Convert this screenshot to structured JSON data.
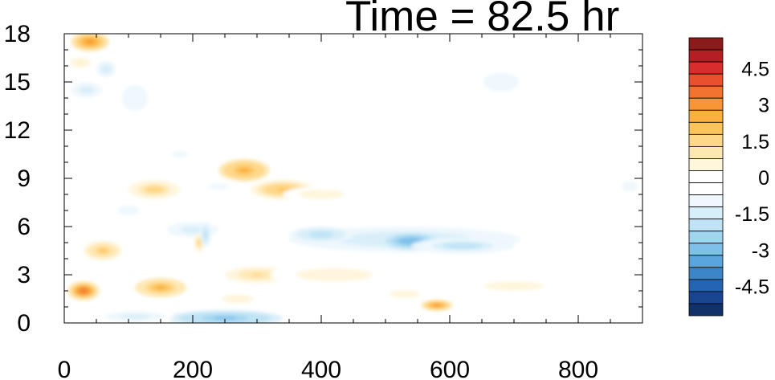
{
  "chart_data": {
    "type": "heatmap",
    "title": "Time = 82.5 hr",
    "xlabel": "",
    "ylabel": "",
    "xlim": [
      0,
      900
    ],
    "ylim": [
      0,
      18
    ],
    "x_ticks": [
      "0",
      "200",
      "400",
      "600",
      "800"
    ],
    "x_tick_values": [
      0,
      200,
      400,
      600,
      800
    ],
    "y_ticks": [
      "0",
      "3",
      "6",
      "9",
      "12",
      "15",
      "18"
    ],
    "y_tick_values": [
      0,
      3,
      6,
      9,
      12,
      15,
      18
    ],
    "colorbar": {
      "labels": [
        "4.5",
        "3",
        "1.5",
        "0",
        "-1.5",
        "-3",
        "-4.5"
      ],
      "label_values": [
        4.5,
        3,
        1.5,
        0,
        -1.5,
        -3,
        -4.5
      ],
      "levels": [
        -5.5,
        -5,
        -4.5,
        -4,
        -3.5,
        -3,
        -2.5,
        -2,
        -1.5,
        -1,
        -0.5,
        0,
        0.5,
        1,
        1.5,
        2,
        2.5,
        3,
        3.5,
        4,
        4.5,
        5,
        5.5
      ],
      "colors_top_to_bottom": [
        "#8b1a1a",
        "#b51f24",
        "#d72d2d",
        "#e8502e",
        "#f2732f",
        "#f89636",
        "#fbaf3e",
        "#fdc45c",
        "#fed788",
        "#fee8b2",
        "#fff6dc",
        "#ffffff",
        "#ffffff",
        "#eef8fd",
        "#d8eef9",
        "#bfe3f5",
        "#a0d5f0",
        "#7ec0e8",
        "#5aa5db",
        "#3c86c8",
        "#2464b0",
        "#1a4590",
        "#12306a"
      ]
    },
    "features": [
      {
        "x": 40,
        "y": 17.5,
        "rx": 30,
        "ry": 0.6,
        "value": 3.2
      },
      {
        "x": 25,
        "y": 16.2,
        "rx": 20,
        "ry": 0.4,
        "value": 1.0
      },
      {
        "x": 35,
        "y": 14.5,
        "rx": 30,
        "ry": 0.6,
        "value": -1.2
      },
      {
        "x": 65,
        "y": 15.8,
        "rx": 15,
        "ry": 0.5,
        "value": -1.5
      },
      {
        "x": 110,
        "y": 14.0,
        "rx": 25,
        "ry": 1.0,
        "value": -1.0
      },
      {
        "x": 40,
        "y": 12.0,
        "rx": 20,
        "ry": 2.0,
        "value": -0.5
      },
      {
        "x": 140,
        "y": 8.3,
        "rx": 40,
        "ry": 0.6,
        "value": 1.8
      },
      {
        "x": 280,
        "y": 9.5,
        "rx": 40,
        "ry": 0.7,
        "value": 2.8
      },
      {
        "x": 340,
        "y": 8.3,
        "rx": 50,
        "ry": 0.6,
        "value": 2.2
      },
      {
        "x": 400,
        "y": 8.0,
        "rx": 60,
        "ry": 0.5,
        "value": 0.8
      },
      {
        "x": 520,
        "y": 8.3,
        "rx": 70,
        "ry": 0.5,
        "value": 0.4
      },
      {
        "x": 700,
        "y": 9.8,
        "rx": 40,
        "ry": 0.6,
        "value": 0.4
      },
      {
        "x": 530,
        "y": 5.2,
        "rx": 180,
        "ry": 0.8,
        "value": -1.7
      },
      {
        "x": 540,
        "y": 5.1,
        "rx": 50,
        "ry": 0.6,
        "value": -3.0
      },
      {
        "x": 400,
        "y": 5.5,
        "rx": 50,
        "ry": 0.5,
        "value": -2.0
      },
      {
        "x": 620,
        "y": 4.8,
        "rx": 80,
        "ry": 0.5,
        "value": -1.8
      },
      {
        "x": 200,
        "y": 5.8,
        "rx": 50,
        "ry": 0.6,
        "value": -1.2
      },
      {
        "x": 100,
        "y": 7.0,
        "rx": 30,
        "ry": 0.5,
        "value": -0.8
      },
      {
        "x": 60,
        "y": 4.5,
        "rx": 30,
        "ry": 0.6,
        "value": 2.0
      },
      {
        "x": 30,
        "y": 2.0,
        "rx": 25,
        "ry": 0.6,
        "value": 3.6
      },
      {
        "x": 150,
        "y": 2.2,
        "rx": 40,
        "ry": 0.6,
        "value": 2.6
      },
      {
        "x": 210,
        "y": 5.0,
        "rx": 8,
        "ry": 0.6,
        "value": 1.8
      },
      {
        "x": 220,
        "y": 5.5,
        "rx": 8,
        "ry": 0.8,
        "value": -2.0
      },
      {
        "x": 300,
        "y": 3.0,
        "rx": 50,
        "ry": 0.5,
        "value": 1.6
      },
      {
        "x": 420,
        "y": 3.0,
        "rx": 100,
        "ry": 0.7,
        "value": 0.8
      },
      {
        "x": 270,
        "y": 1.5,
        "rx": 40,
        "ry": 0.5,
        "value": 0.8
      },
      {
        "x": 250,
        "y": 0.3,
        "rx": 90,
        "ry": 0.5,
        "value": -2.8
      },
      {
        "x": 110,
        "y": 0.4,
        "rx": 60,
        "ry": 0.4,
        "value": -1.2
      },
      {
        "x": 580,
        "y": 1.1,
        "rx": 25,
        "ry": 0.35,
        "value": 3.0
      },
      {
        "x": 700,
        "y": 2.3,
        "rx": 80,
        "ry": 0.5,
        "value": 0.8
      },
      {
        "x": 530,
        "y": 1.8,
        "rx": 40,
        "ry": 0.4,
        "value": 0.8
      },
      {
        "x": 680,
        "y": 15.0,
        "rx": 70,
        "ry": 1.5,
        "value": -0.6
      },
      {
        "x": 880,
        "y": 8.5,
        "rx": 30,
        "ry": 0.8,
        "value": -0.6
      },
      {
        "x": 840,
        "y": 0.5,
        "rx": 40,
        "ry": 0.4,
        "value": 0.4
      },
      {
        "x": 480,
        "y": 17.0,
        "rx": 60,
        "ry": 0.3,
        "value": 0.4
      },
      {
        "x": 180,
        "y": 10.5,
        "rx": 30,
        "ry": 0.5,
        "value": -0.7
      },
      {
        "x": 240,
        "y": 8.5,
        "rx": 40,
        "ry": 0.5,
        "value": -0.7
      }
    ]
  }
}
